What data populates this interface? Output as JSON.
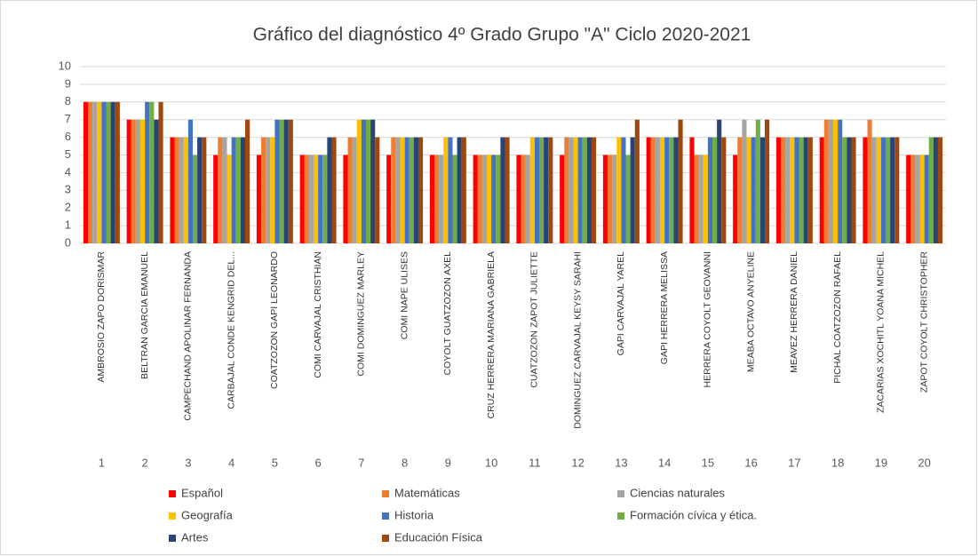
{
  "chart_data": {
    "type": "bar",
    "title": "Gráfico del diagnóstico 4º Grado Grupo \"A\" Ciclo 2020-2021",
    "categories": [
      "AMBROSIO ZAPO DORISMAR",
      "BELTRAN GARCIA EMANUEL",
      "CAMPECHAND APOLINAR FERNANDA",
      "CARBAJAL CONDE KENGRID DEL...",
      "COATZOZON GAPI LEONARDO",
      "COMI CARVAJAL CRISTHIAN",
      "COMI DOMINGUEZ MARLEY",
      "COMI NAPE ULISES",
      "COYOLT GUATZOZON AXEL",
      "CRUZ HERRERA MARIANA GABRIELA",
      "CUATZOZON ZAPOT JULIETTE",
      "DOMINGUEZ CARVAJAL KEYSY SARAHI",
      "GAPI CARVAJAL YAREL",
      "GAPI HERRERA MELISSA",
      "HERRERA COYOLT GEOVANNI",
      "MEABA OCTAVO ANYELINE",
      "MEAVEZ HERRERA DANIEL",
      "PICHAL COATZOZON RAFAEL",
      "ZACARIAS XOCHITL YOANA MICHEL",
      "ZAPOT COYOLT CHRISTOPHER"
    ],
    "category_numbers": [
      "1",
      "2",
      "3",
      "4",
      "5",
      "6",
      "7",
      "8",
      "9",
      "10",
      "11",
      "12",
      "13",
      "14",
      "15",
      "16",
      "17",
      "18",
      "19",
      "20"
    ],
    "series": [
      {
        "name": "Español",
        "color": "#ff0000",
        "values": [
          8,
          7,
          6,
          5,
          5,
          5,
          5,
          5,
          5,
          5,
          5,
          5,
          5,
          6,
          6,
          5,
          6,
          6,
          6,
          5
        ]
      },
      {
        "name": "Matemáticas",
        "color": "#ed7d31",
        "values": [
          8,
          7,
          6,
          6,
          6,
          5,
          6,
          6,
          5,
          5,
          5,
          6,
          5,
          6,
          5,
          6,
          6,
          7,
          7,
          5
        ]
      },
      {
        "name": "Ciencias naturales",
        "color": "#a5a5a5",
        "values": [
          8,
          7,
          6,
          6,
          6,
          5,
          6,
          6,
          5,
          5,
          5,
          6,
          5,
          6,
          5,
          7,
          6,
          7,
          6,
          5
        ]
      },
      {
        "name": "Geografía",
        "color": "#ffc000",
        "values": [
          8,
          7,
          6,
          5,
          6,
          5,
          7,
          6,
          6,
          5,
          6,
          6,
          6,
          6,
          5,
          6,
          6,
          7,
          6,
          5
        ]
      },
      {
        "name": "Historia",
        "color": "#4472c4",
        "values": [
          8,
          8,
          7,
          6,
          7,
          5,
          7,
          6,
          6,
          5,
          6,
          6,
          6,
          6,
          6,
          6,
          6,
          7,
          6,
          5
        ]
      },
      {
        "name": "Formación cívica  y ética.",
        "color": "#70ad47",
        "values": [
          8,
          8,
          5,
          6,
          7,
          5,
          7,
          6,
          5,
          5,
          6,
          6,
          5,
          6,
          6,
          7,
          6,
          6,
          6,
          6
        ]
      },
      {
        "name": "Artes",
        "color": "#264478",
        "values": [
          8,
          7,
          6,
          6,
          7,
          6,
          7,
          6,
          6,
          6,
          6,
          6,
          6,
          6,
          7,
          6,
          6,
          6,
          6,
          6
        ]
      },
      {
        "name": "Educación  Física",
        "color": "#9e480e",
        "values": [
          8,
          8,
          6,
          7,
          7,
          6,
          6,
          6,
          6,
          6,
          6,
          6,
          7,
          7,
          6,
          7,
          6,
          6,
          6,
          6
        ]
      }
    ],
    "ylim": [
      0,
      10
    ],
    "yticks": [
      0,
      1,
      2,
      3,
      4,
      5,
      6,
      7,
      8,
      9,
      10
    ],
    "grid": true
  }
}
